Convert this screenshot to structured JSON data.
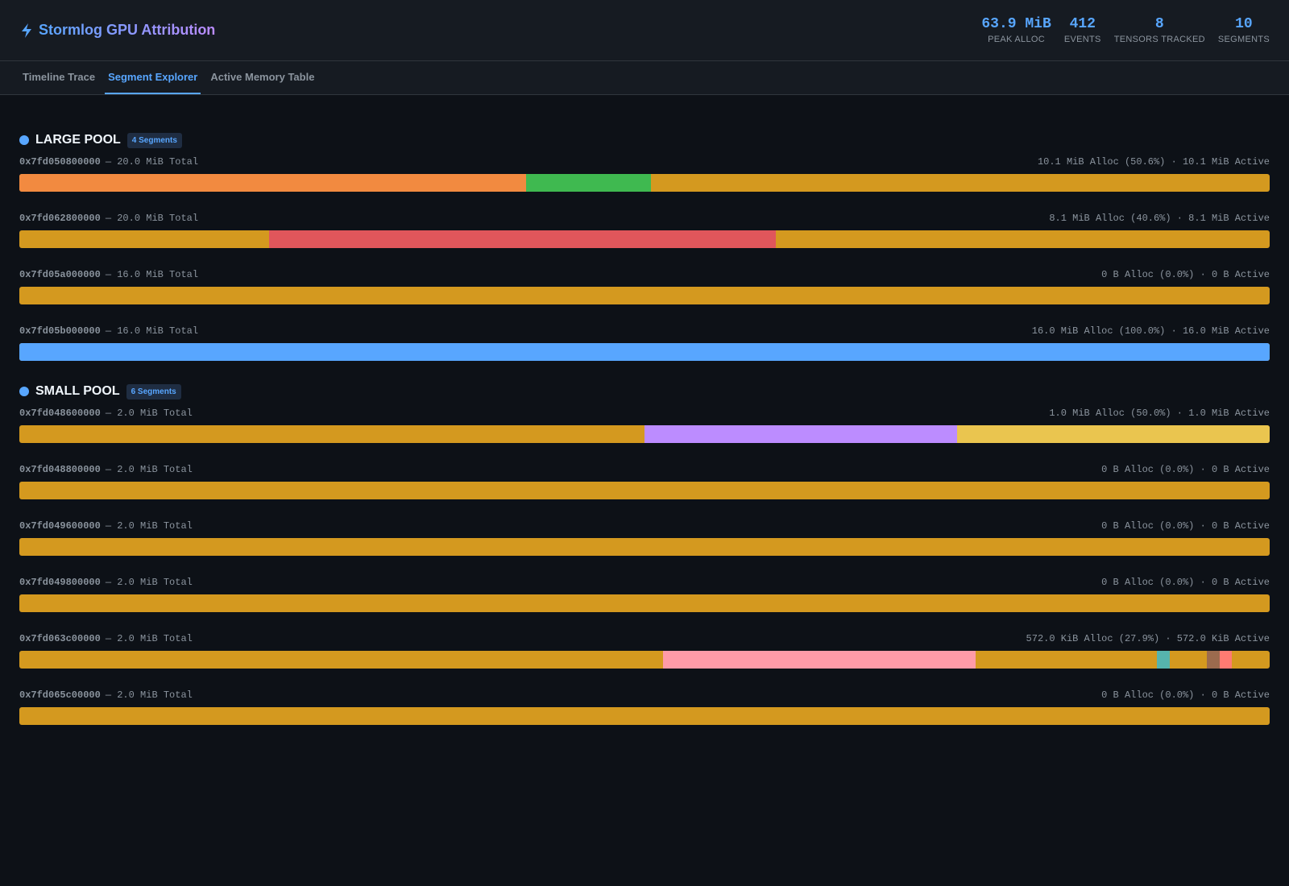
{
  "header": {
    "title": "Stormlog GPU Attribution",
    "stats": [
      {
        "value": "63.9 MiB",
        "label": "PEAK ALLOC"
      },
      {
        "value": "412",
        "label": "EVENTS"
      },
      {
        "value": "8",
        "label": "TENSORS TRACKED"
      },
      {
        "value": "10",
        "label": "SEGMENTS"
      }
    ]
  },
  "tabs": {
    "items": [
      "Timeline Trace",
      "Segment Explorer",
      "Active Memory Table"
    ],
    "active": 1
  },
  "free_color": "#d4991f",
  "pools": [
    {
      "name": "LARGE POOL",
      "badge": "4 Segments",
      "segments": [
        {
          "address": "0x7fd050800000",
          "total": "— 20.0 MiB Total",
          "usage": "10.1 MiB Alloc (50.6%) · 10.1 MiB Active",
          "range": [
            0,
            20
          ],
          "blocks": [
            {
              "start": 0,
              "size": 8.1,
              "color": "#f28a40"
            },
            {
              "start": 8.1,
              "size": 2.0,
              "color": "#3fb950"
            }
          ]
        },
        {
          "address": "0x7fd062800000",
          "total": "— 20.0 MiB Total",
          "usage": "8.1 MiB Alloc (40.6%) · 8.1 MiB Active",
          "range": [
            0,
            20
          ],
          "blocks": [
            {
              "start": 4.0,
              "size": 8.1,
              "color": "#e0565b"
            }
          ]
        },
        {
          "address": "0x7fd05a000000",
          "total": "— 16.0 MiB Total",
          "usage": "0 B Alloc (0.0%) · 0 B Active",
          "range": [
            0,
            16
          ],
          "blocks": []
        },
        {
          "address": "0x7fd05b000000",
          "total": "— 16.0 MiB Total",
          "usage": "16.0 MiB Alloc (100.0%) · 16.0 MiB Active",
          "range": [
            0,
            16
          ],
          "blocks": [
            {
              "start": 0,
              "size": 16.0,
              "color": "#58a6ff"
            }
          ]
        }
      ]
    },
    {
      "name": "SMALL POOL",
      "badge": "6 Segments",
      "segments": [
        {
          "address": "0x7fd048600000",
          "total": "— 2.0 MiB Total",
          "usage": "1.0 MiB Alloc (50.0%) · 1.0 MiB Active",
          "range": [
            0,
            2
          ],
          "blocks": [
            {
              "start": 1.0,
              "size": 0.5,
              "color": "#bc8cff"
            },
            {
              "start": 1.5,
              "size": 0.5,
              "color": "#eac54f"
            }
          ]
        },
        {
          "address": "0x7fd048800000",
          "total": "— 2.0 MiB Total",
          "usage": "0 B Alloc (0.0%) · 0 B Active",
          "range": [
            0,
            2
          ],
          "blocks": []
        },
        {
          "address": "0x7fd049600000",
          "total": "— 2.0 MiB Total",
          "usage": "0 B Alloc (0.0%) · 0 B Active",
          "range": [
            0,
            2
          ],
          "blocks": []
        },
        {
          "address": "0x7fd049800000",
          "total": "— 2.0 MiB Total",
          "usage": "0 B Alloc (0.0%) · 0 B Active",
          "range": [
            0,
            2
          ],
          "blocks": []
        },
        {
          "address": "0x7fd063c00000",
          "total": "— 2.0 MiB Total",
          "usage": "572.0 KiB Alloc (27.9%) · 572.0 KiB Active",
          "range": [
            0,
            2
          ],
          "blocks": [
            {
              "start": 1.03,
              "size": 0.5,
              "color": "#ff9ba8"
            },
            {
              "start": 1.82,
              "size": 0.02,
              "color": "#56b4ad"
            },
            {
              "start": 1.9,
              "size": 0.02,
              "color": "#9c6b4e"
            },
            {
              "start": 1.92,
              "size": 0.02,
              "color": "#ff7b72"
            }
          ]
        },
        {
          "address": "0x7fd065c00000",
          "total": "— 2.0 MiB Total",
          "usage": "0 B Alloc (0.0%) · 0 B Active",
          "range": [
            0,
            2
          ],
          "blocks": []
        }
      ]
    }
  ]
}
